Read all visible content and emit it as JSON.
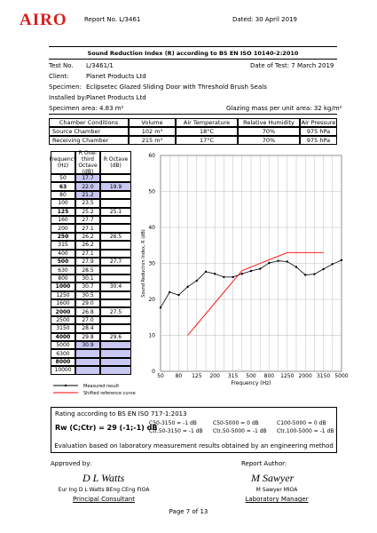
{
  "header": {
    "logo": "AIRO",
    "report": "Report No. L/3461",
    "dated": "Dated: 30 April 2019"
  },
  "title": "Sound Reduction Index (R) according to BS EN ISO 10140-2:2010",
  "test": {
    "label": "Test No.",
    "value": "L/3461/1",
    "date": "Date of Test: 7 March 2019"
  },
  "details": [
    [
      "Client:",
      "Planet Products Ltd"
    ],
    [
      "Specimen:",
      "Eclipsetec Glazed Sliding Door with Threshold Brush Seals"
    ],
    [
      "Installed by:",
      "Planet Products Ltd"
    ]
  ],
  "area": "Specimen area: 4.83 m²",
  "mass": "Glazing mass per unit area: 32 kg/m²",
  "conditions": {
    "headers": [
      "Chamber Conditions",
      "Volume",
      "Air Temperature",
      "Relative Humidity",
      "Air Pressure"
    ],
    "rows": [
      [
        "Source Chamber",
        "102 m³",
        "18°C",
        "70%",
        "975 hPa"
      ],
      [
        "Receiving Chamber",
        "215 m³",
        "17°C",
        "70%",
        "975 hPa"
      ]
    ]
  },
  "table": {
    "headers": [
      "Frequency (Hz)",
      "R One-third Octave (dB)",
      "R Octave (dB)"
    ],
    "frequencies": [
      "50",
      "63",
      "80",
      "100",
      "125",
      "160",
      "200",
      "250",
      "315",
      "400",
      "500",
      "630",
      "800",
      "1000",
      "1250",
      "1600",
      "2000",
      "2500",
      "3150",
      "4000",
      "5000",
      "6300",
      "8000",
      "10000"
    ],
    "octave": [
      null,
      19.9,
      null,
      null,
      25.1,
      null,
      null,
      26.5,
      null,
      null,
      27.7,
      null,
      null,
      30.4,
      null,
      null,
      27.5,
      null,
      null,
      29.6,
      null,
      null,
      null,
      null
    ]
  },
  "chart_data": {
    "type": "line",
    "ylabel": "Sound Reduction Index, R (dB)",
    "xlabel": "Frequency (Hz)",
    "categories": [
      "50",
      null,
      "80",
      null,
      "125",
      null,
      "200",
      null,
      "315",
      null,
      "500",
      null,
      "800",
      null,
      "1250",
      null,
      "2000",
      null,
      "3150",
      null,
      "5000"
    ],
    "ylim": [
      0,
      60
    ],
    "yticks": [
      0,
      10,
      20,
      30,
      40,
      50,
      60
    ],
    "grid": true,
    "series": [
      {
        "name": "Measured result",
        "color": "#000000",
        "values": [
          17.7,
          22,
          21.2,
          23.5,
          25.2,
          27.7,
          27.1,
          26.2,
          26.2,
          27.1,
          27.9,
          28.5,
          30.1,
          30.7,
          30.5,
          29,
          26.8,
          27,
          28.4,
          29.8,
          30.9
        ],
        "value_labels": [
          "17.7",
          "22.0",
          "21.2",
          "23.5",
          "25.2",
          "27.7",
          "27.1",
          "26.2",
          "26.2",
          "27.1",
          "27.9",
          "28.5",
          "30.1",
          "30.7",
          "30.5",
          "29.0",
          "26.8",
          "27.0",
          "28.4",
          "29.8",
          "30.9"
        ]
      },
      {
        "name": "Shifted reference curve",
        "color": "#ff0000",
        "values": [
          null,
          null,
          null,
          10,
          13,
          16,
          19,
          22,
          25,
          28,
          29,
          30,
          31,
          32,
          33,
          33,
          33,
          33,
          33,
          null,
          null
        ]
      }
    ]
  },
  "rating": {
    "heading": "Rating according to BS EN ISO 717-1:2013",
    "rw": "Rw (C;Ctr) = 29 (-1;-1) dB",
    "terms": [
      "C50-3150 = -1 dB",
      "C50-5000 = 0 dB",
      "C100-5000 = 0 dB",
      "Ctr,50-3150 = -1 dB",
      "Ctr,50-5000 = -1 dB",
      "Ctr,100-5000 = -1 dB"
    ],
    "note": "Evaluation based on laboratory measurement results obtained by an engineering method"
  },
  "approval": {
    "label": "Approved by:",
    "signature": "D L Watts",
    "name": "Eur Ing D L Watts BEng CEng FIOA",
    "role": "Principal Consultant"
  },
  "author": {
    "label": "Report Author:",
    "signature": "M Sawyer",
    "name": "M Sawyer MIOA",
    "role": "Laboratory Manager"
  },
  "page": "Page 7 of 13"
}
